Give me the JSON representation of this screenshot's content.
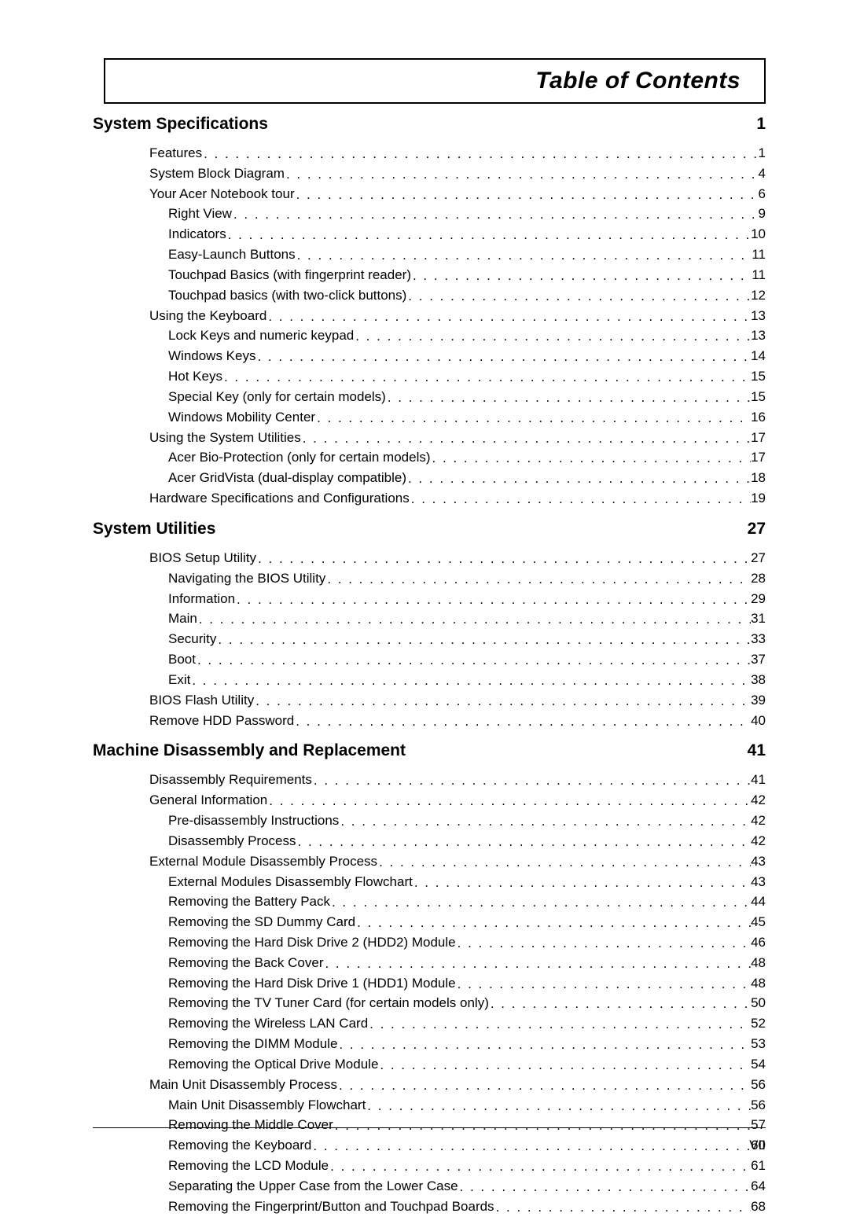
{
  "page": {
    "title": "Table of Contents",
    "footer_page": "VII",
    "text_color": "#000000",
    "bg_color": "#ffffff",
    "title_fontsize": 30,
    "section_fontsize": 21,
    "entry_fontsize": 17
  },
  "sections": [
    {
      "heading": "System Specifications",
      "page": "1",
      "entries": [
        {
          "label": "Features",
          "page": "1",
          "level": 0
        },
        {
          "label": "System Block Diagram",
          "page": "4",
          "level": 0
        },
        {
          "label": "Your Acer Notebook tour",
          "page": "6",
          "level": 0
        },
        {
          "label": "Right View",
          "page": "9",
          "level": 1
        },
        {
          "label": "Indicators",
          "page": "10",
          "level": 1
        },
        {
          "label": "Easy-Launch Buttons",
          "page": "11",
          "level": 1
        },
        {
          "label": "Touchpad Basics (with fingerprint reader)",
          "page": "11",
          "level": 1
        },
        {
          "label": "Touchpad basics (with two-click buttons)",
          "page": "12",
          "level": 1
        },
        {
          "label": "Using the Keyboard",
          "page": "13",
          "level": 0
        },
        {
          "label": "Lock Keys and numeric keypad",
          "page": "13",
          "level": 1
        },
        {
          "label": "Windows Keys",
          "page": "14",
          "level": 1
        },
        {
          "label": "Hot Keys",
          "page": "15",
          "level": 1
        },
        {
          "label": "Special Key (only for certain models)",
          "page": "15",
          "level": 1
        },
        {
          "label": "Windows Mobility Center",
          "page": "16",
          "level": 1
        },
        {
          "label": "Using the System Utilities",
          "page": "17",
          "level": 0
        },
        {
          "label": "Acer Bio-Protection (only for certain models)",
          "page": "17",
          "level": 1
        },
        {
          "label": "Acer GridVista (dual-display compatible)",
          "page": "18",
          "level": 1
        },
        {
          "label": "Hardware Specifications and Configurations",
          "page": "19",
          "level": 0
        }
      ]
    },
    {
      "heading": "System Utilities",
      "page": "27",
      "entries": [
        {
          "label": "BIOS Setup Utility",
          "page": "27",
          "level": 0
        },
        {
          "label": "Navigating the BIOS Utility",
          "page": "28",
          "level": 1
        },
        {
          "label": "Information",
          "page": "29",
          "level": 1
        },
        {
          "label": "Main",
          "page": "31",
          "level": 1
        },
        {
          "label": "Security",
          "page": "33",
          "level": 1
        },
        {
          "label": "Boot",
          "page": "37",
          "level": 1
        },
        {
          "label": "Exit",
          "page": "38",
          "level": 1
        },
        {
          "label": "BIOS Flash Utility",
          "page": "39",
          "level": 0
        },
        {
          "label": "Remove HDD Password",
          "page": "40",
          "level": 0
        }
      ]
    },
    {
      "heading": "Machine Disassembly and Replacement",
      "page": "41",
      "entries": [
        {
          "label": "Disassembly Requirements",
          "page": "41",
          "level": 0
        },
        {
          "label": "General Information",
          "page": "42",
          "level": 0
        },
        {
          "label": "Pre-disassembly Instructions",
          "page": "42",
          "level": 1
        },
        {
          "label": "Disassembly Process",
          "page": "42",
          "level": 1
        },
        {
          "label": "External Module Disassembly Process",
          "page": "43",
          "level": 0
        },
        {
          "label": "External Modules Disassembly Flowchart",
          "page": "43",
          "level": 1
        },
        {
          "label": "Removing the Battery Pack",
          "page": "44",
          "level": 1
        },
        {
          "label": "Removing the SD Dummy Card",
          "page": "45",
          "level": 1
        },
        {
          "label": "Removing the Hard Disk Drive 2 (HDD2) Module",
          "page": "46",
          "level": 1
        },
        {
          "label": "Removing the Back Cover",
          "page": "48",
          "level": 1
        },
        {
          "label": "Removing the Hard Disk Drive 1 (HDD1) Module",
          "page": "48",
          "level": 1
        },
        {
          "label": "Removing the TV Tuner Card (for certain models only)",
          "page": "50",
          "level": 1
        },
        {
          "label": "Removing the Wireless LAN Card",
          "page": "52",
          "level": 1
        },
        {
          "label": "Removing the DIMM Module",
          "page": "53",
          "level": 1
        },
        {
          "label": "Removing the Optical Drive Module",
          "page": "54",
          "level": 1
        },
        {
          "label": "Main Unit Disassembly Process",
          "page": "56",
          "level": 0
        },
        {
          "label": "Main Unit Disassembly Flowchart",
          "page": "56",
          "level": 1
        },
        {
          "label": "Removing the Middle Cover",
          "page": "57",
          "level": 1
        },
        {
          "label": "Removing the Keyboard",
          "page": "60",
          "level": 1
        },
        {
          "label": "Removing the LCD Module",
          "page": "61",
          "level": 1
        },
        {
          "label": "Separating the Upper Case from the Lower Case",
          "page": "64",
          "level": 1
        },
        {
          "label": "Removing the Fingerprint/Button and Touchpad Boards",
          "page": "68",
          "level": 1
        }
      ]
    }
  ]
}
